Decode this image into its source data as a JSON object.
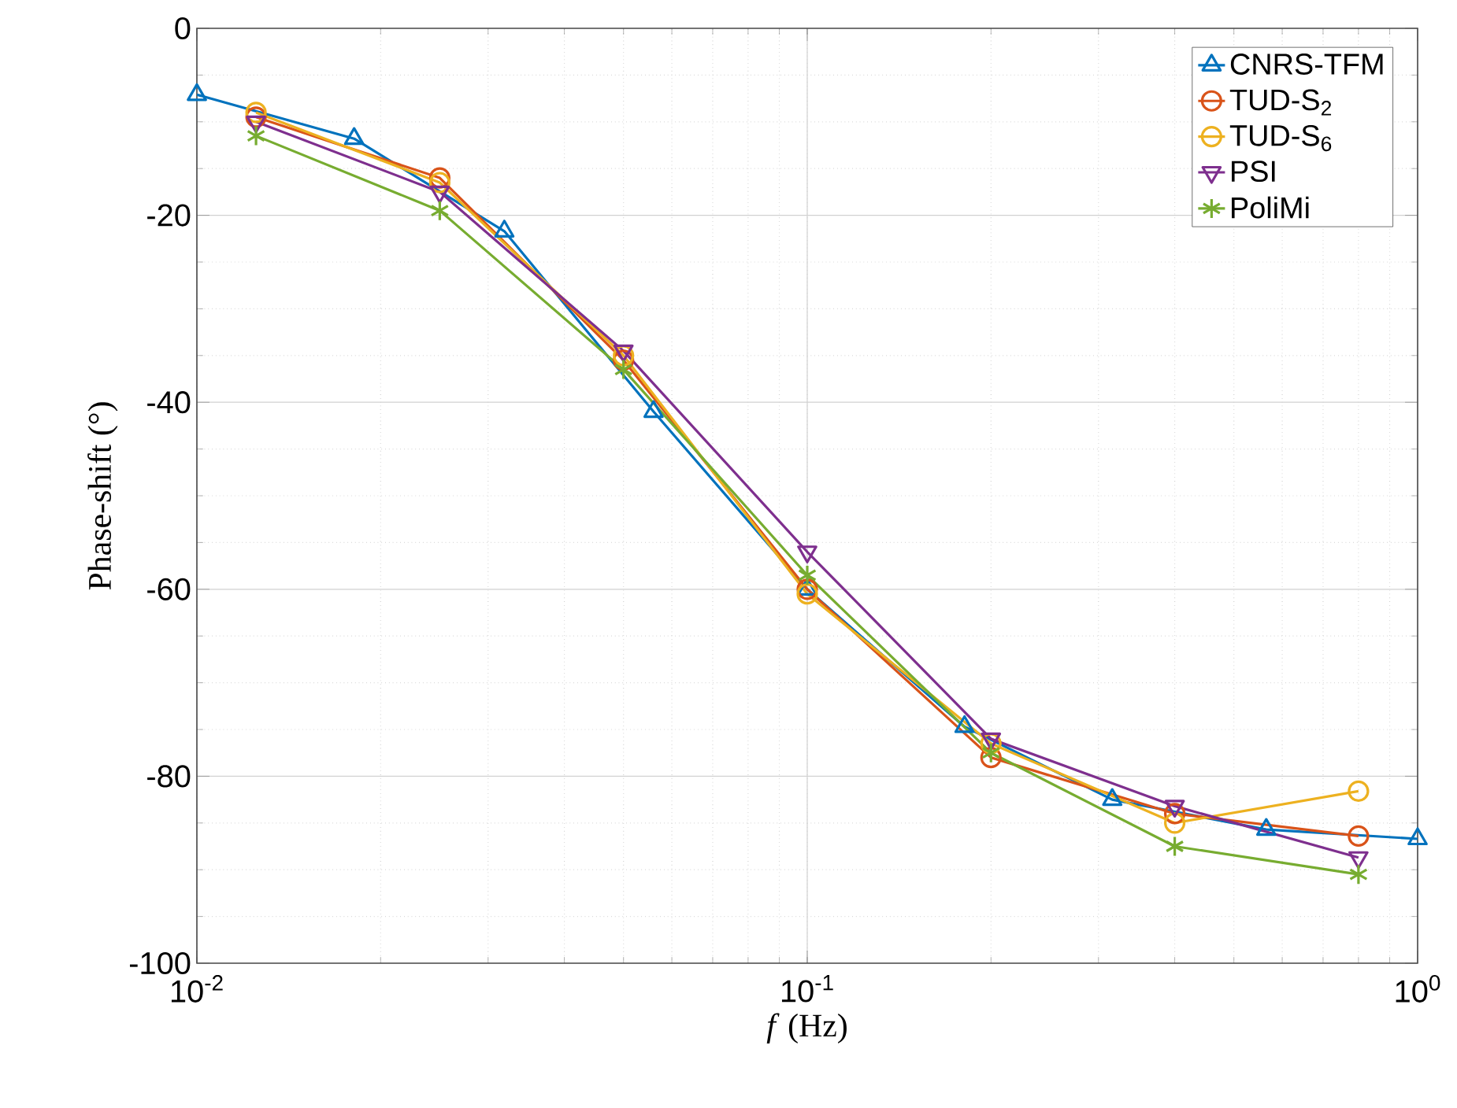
{
  "chart_data": {
    "type": "line",
    "xlabel": "*f* (Hz)",
    "ylabel": "Phase-shift (°)",
    "log": "x",
    "xlim": [
      0.01,
      1
    ],
    "ylim": [
      -100,
      0
    ],
    "xticks": [
      {
        "value": 0.01,
        "label": "10$^{-2}$"
      },
      {
        "value": 0.1,
        "label": "10$^{-1}$"
      },
      {
        "value": 1,
        "label": "10$^{0}$"
      }
    ],
    "yticks": [
      -100,
      -80,
      -60,
      -40,
      -20,
      0
    ],
    "grid": true,
    "legend": "top right",
    "line_style": "solid",
    "series": [
      {
        "name": "CNRS-TFM",
        "color": "#0072bd",
        "marker": "triangle",
        "x": [
          0.01,
          0.0181,
          0.0319,
          0.056,
          0.1,
          0.181,
          0.316,
          0.565,
          1.0
        ],
        "values": [
          -7.1,
          -11.8,
          -21.7,
          -41,
          -60,
          -74.7,
          -82.5,
          -85.7,
          -86.7
        ]
      },
      {
        "name": "TUD-S$_{2}$",
        "color": "#d95319",
        "marker": "circle",
        "x": [
          0.0125,
          0.025,
          0.05,
          0.1,
          0.2,
          0.4,
          0.8
        ],
        "values": [
          -9.5,
          -16,
          -35.5,
          -60,
          -78,
          -84,
          -86.4
        ]
      },
      {
        "name": "TUD-S$_{6}$",
        "color": "#edb120",
        "marker": "circle",
        "x": [
          0.0125,
          0.025,
          0.05,
          0.1,
          0.2,
          0.4,
          0.8
        ],
        "values": [
          -9,
          -16.5,
          -35,
          -60.5,
          -76.5,
          -85,
          -81.6
        ]
      },
      {
        "name": "PSI",
        "color": "#7e2f8e",
        "marker": "triangle-down",
        "x": [
          0.0125,
          0.025,
          0.05,
          0.1,
          0.2,
          0.4,
          0.8
        ],
        "values": [
          -10,
          -17.5,
          -34.5,
          -56,
          -76,
          -83.2,
          -88.7
        ]
      },
      {
        "name": "PoliMi",
        "color": "#77ac30",
        "marker": "cross",
        "x": [
          0.0125,
          0.025,
          0.05,
          0.1,
          0.2,
          0.4,
          0.8
        ],
        "values": [
          -11.5,
          -19.5,
          -36.5,
          -58.5,
          -77.5,
          -87.5,
          -90.5
        ]
      }
    ]
  }
}
